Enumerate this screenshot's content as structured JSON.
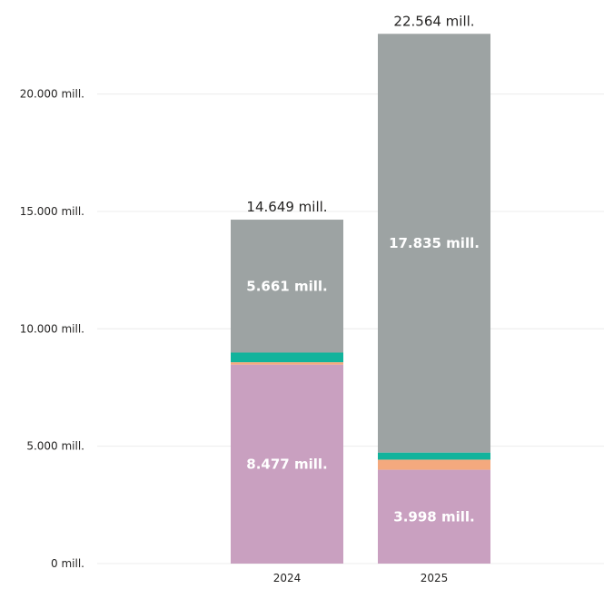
{
  "chart_data": {
    "type": "bar",
    "stacked": true,
    "categories": [
      "2024",
      "2025"
    ],
    "series": [
      {
        "values": [
          8477,
          3998
        ],
        "color": "#c9a0c0",
        "labels": [
          "8.477 mill.",
          "3.998 mill."
        ]
      },
      {
        "values": [
          100,
          430
        ],
        "color": "#f4a97e",
        "labels": [
          "",
          ""
        ]
      },
      {
        "values": [
          411,
          301
        ],
        "color": "#12b39c",
        "labels": [
          "",
          ""
        ]
      },
      {
        "values": [
          5661,
          17835
        ],
        "color": "#9da3a3",
        "labels": [
          "5.661 mill.",
          "17.835 mill."
        ]
      }
    ],
    "totals": [
      14649,
      22564
    ],
    "total_labels": [
      "14.649 mill.",
      "22.564 mill."
    ],
    "ylim": [
      0,
      23000
    ],
    "yticks": [
      0,
      5000,
      10000,
      15000,
      20000
    ],
    "ytick_labels": [
      "0 mill.",
      "5.000 mill.",
      "10.000 mill.",
      "15.000 mill.",
      "20.000 mill."
    ],
    "grid": true,
    "legend": "none",
    "title": "",
    "xlabel": "",
    "ylabel": ""
  }
}
